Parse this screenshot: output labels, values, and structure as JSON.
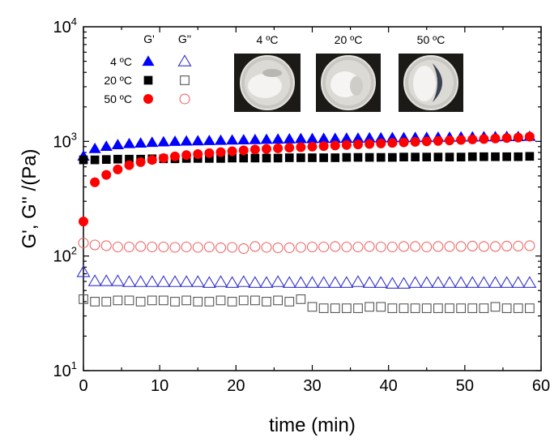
{
  "chart_data": {
    "type": "scatter",
    "title": "",
    "xlabel": "time (min)",
    "ylabel": "G', G'' /(Pa)",
    "xlim": [
      0,
      60
    ],
    "ylim": [
      10,
      10000
    ],
    "y_scale": "log",
    "grid": false,
    "x_ticks": [
      "0",
      "10",
      "20",
      "30",
      "40",
      "50",
      "60"
    ],
    "y_ticks": [
      {
        "value": 10,
        "base": "10",
        "exp": "1"
      },
      {
        "value": 100,
        "base": "10",
        "exp": "2"
      },
      {
        "value": 1000,
        "base": "10",
        "exp": "3"
      },
      {
        "value": 10000,
        "base": "10",
        "exp": "4"
      }
    ],
    "legend": {
      "placement": "top-left",
      "headers": [
        "G'",
        "G''"
      ],
      "rows": [
        "4 ºC",
        "20 ºC",
        "50 ºC"
      ]
    },
    "inset_photos": [
      "4 ºC",
      "20 ºC",
      "50 ºC"
    ],
    "x": [
      0,
      1.5,
      3,
      4.5,
      6,
      7.5,
      9,
      10.5,
      12,
      13.5,
      15,
      16.5,
      18,
      19.5,
      21,
      22.5,
      24,
      25.5,
      27,
      28.5,
      30,
      31.5,
      33,
      34.5,
      36,
      37.5,
      39,
      40.5,
      42,
      43.5,
      45,
      46.5,
      48,
      49.5,
      51,
      52.5,
      54,
      55.5,
      57,
      58.5
    ],
    "series": [
      {
        "name": "G' 4 ºC",
        "marker": "triangle",
        "filled": true,
        "color": "#0000ff",
        "values": [
          740,
          860,
          900,
          930,
          950,
          960,
          975,
          985,
          995,
          1000,
          1005,
          1010,
          1015,
          1020,
          1025,
          1030,
          1035,
          1040,
          1045,
          1050,
          1050,
          1055,
          1055,
          1060,
          1060,
          1065,
          1065,
          1070,
          1070,
          1075,
          1075,
          1080,
          1080,
          1085,
          1085,
          1090,
          1090,
          1095,
          1095,
          1100
        ]
      },
      {
        "name": "G' 20 ºC",
        "marker": "square",
        "filled": true,
        "color": "#000000",
        "values": [
          690,
          690,
          695,
          700,
          700,
          700,
          705,
          705,
          705,
          710,
          710,
          710,
          710,
          715,
          715,
          715,
          715,
          715,
          720,
          720,
          720,
          720,
          720,
          725,
          725,
          725,
          725,
          725,
          730,
          730,
          730,
          730,
          730,
          730,
          735,
          735,
          735,
          735,
          735,
          740
        ]
      },
      {
        "name": "G' 50 ºC",
        "marker": "circle",
        "filled": true,
        "color": "#ff0000",
        "values": [
          200,
          440,
          510,
          570,
          620,
          660,
          690,
          715,
          740,
          760,
          775,
          790,
          805,
          820,
          835,
          850,
          860,
          870,
          880,
          890,
          900,
          910,
          920,
          930,
          940,
          950,
          960,
          970,
          980,
          990,
          1000,
          1010,
          1020,
          1030,
          1040,
          1050,
          1060,
          1070,
          1080,
          1100
        ]
      },
      {
        "name": "G'' 4 ºC",
        "marker": "triangle",
        "filled": false,
        "color": "#3333cc",
        "values": [
          72,
          60,
          60,
          60,
          59,
          59,
          59,
          59,
          59,
          59,
          59,
          58,
          59,
          58,
          59,
          58,
          58,
          59,
          58,
          58,
          58,
          58,
          58,
          58,
          59,
          58,
          58,
          57,
          57,
          58,
          58,
          58,
          58,
          58,
          58,
          58,
          58,
          58,
          58,
          58
        ]
      },
      {
        "name": "G'' 20 ºC",
        "marker": "square",
        "filled": false,
        "color": "#555555",
        "values": [
          42,
          40,
          40,
          41,
          41,
          40,
          41,
          41,
          40,
          41,
          40,
          40,
          41,
          40,
          41,
          41,
          40,
          41,
          40,
          42,
          36,
          35,
          35,
          35,
          35,
          36,
          36,
          35,
          35,
          35,
          35,
          35,
          35,
          35,
          35,
          35,
          36,
          35,
          35,
          35
        ]
      },
      {
        "name": "G'' 50 ºC",
        "marker": "circle",
        "filled": false,
        "color": "#ee6666",
        "values": [
          130,
          125,
          123,
          120,
          120,
          121,
          120,
          120,
          119,
          120,
          119,
          120,
          118,
          119,
          116,
          121,
          119,
          118,
          118,
          119,
          120,
          120,
          121,
          120,
          120,
          121,
          120,
          120,
          121,
          121,
          120,
          121,
          121,
          121,
          122,
          121,
          121,
          122,
          122,
          123
        ]
      }
    ]
  }
}
